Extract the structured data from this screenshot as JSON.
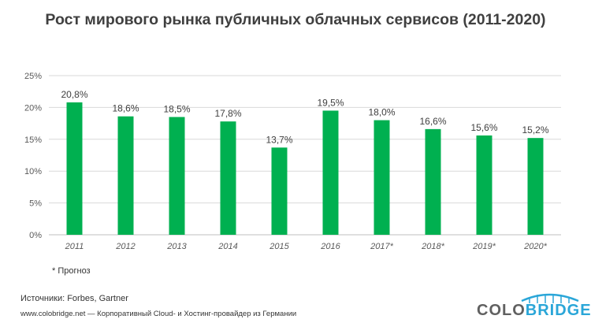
{
  "title": "Рост мирового рынка публичных облачных сервисов (2011-2020)",
  "footnote": "* Прогноз",
  "sources": "Источники: Forbes,  Gartner",
  "site": "www.colobridge.net — Корпоративный Cloud- и Хостинг-провайдер из Германии",
  "logo": {
    "part1": "COLO",
    "part2": "BRIDGE"
  },
  "colors": {
    "bar": "#00b050",
    "grid": "#d9d9d9",
    "text": "#404040",
    "logo_blue": "#2aa6d8"
  },
  "chart_data": {
    "type": "bar",
    "title": "Рост мирового рынка публичных облачных сервисов (2011-2020)",
    "categories": [
      "2011",
      "2012",
      "2013",
      "2014",
      "2015",
      "2016",
      "2017*",
      "2018*",
      "2019*",
      "2020*"
    ],
    "values": [
      20.8,
      18.6,
      18.5,
      17.8,
      13.7,
      19.5,
      18.0,
      16.6,
      15.6,
      15.2
    ],
    "value_labels": [
      "20,8%",
      "18,6%",
      "18,5%",
      "17,8%",
      "13,7%",
      "19,5%",
      "18,0%",
      "16,6%",
      "15,6%",
      "15,2%"
    ],
    "yticks": [
      0,
      5,
      10,
      15,
      20,
      25
    ],
    "ytick_labels": [
      "0%",
      "5%",
      "10%",
      "15%",
      "20%",
      "25%"
    ],
    "ylim": [
      0,
      25
    ],
    "xlabel": "",
    "ylabel": "",
    "grid": true
  }
}
